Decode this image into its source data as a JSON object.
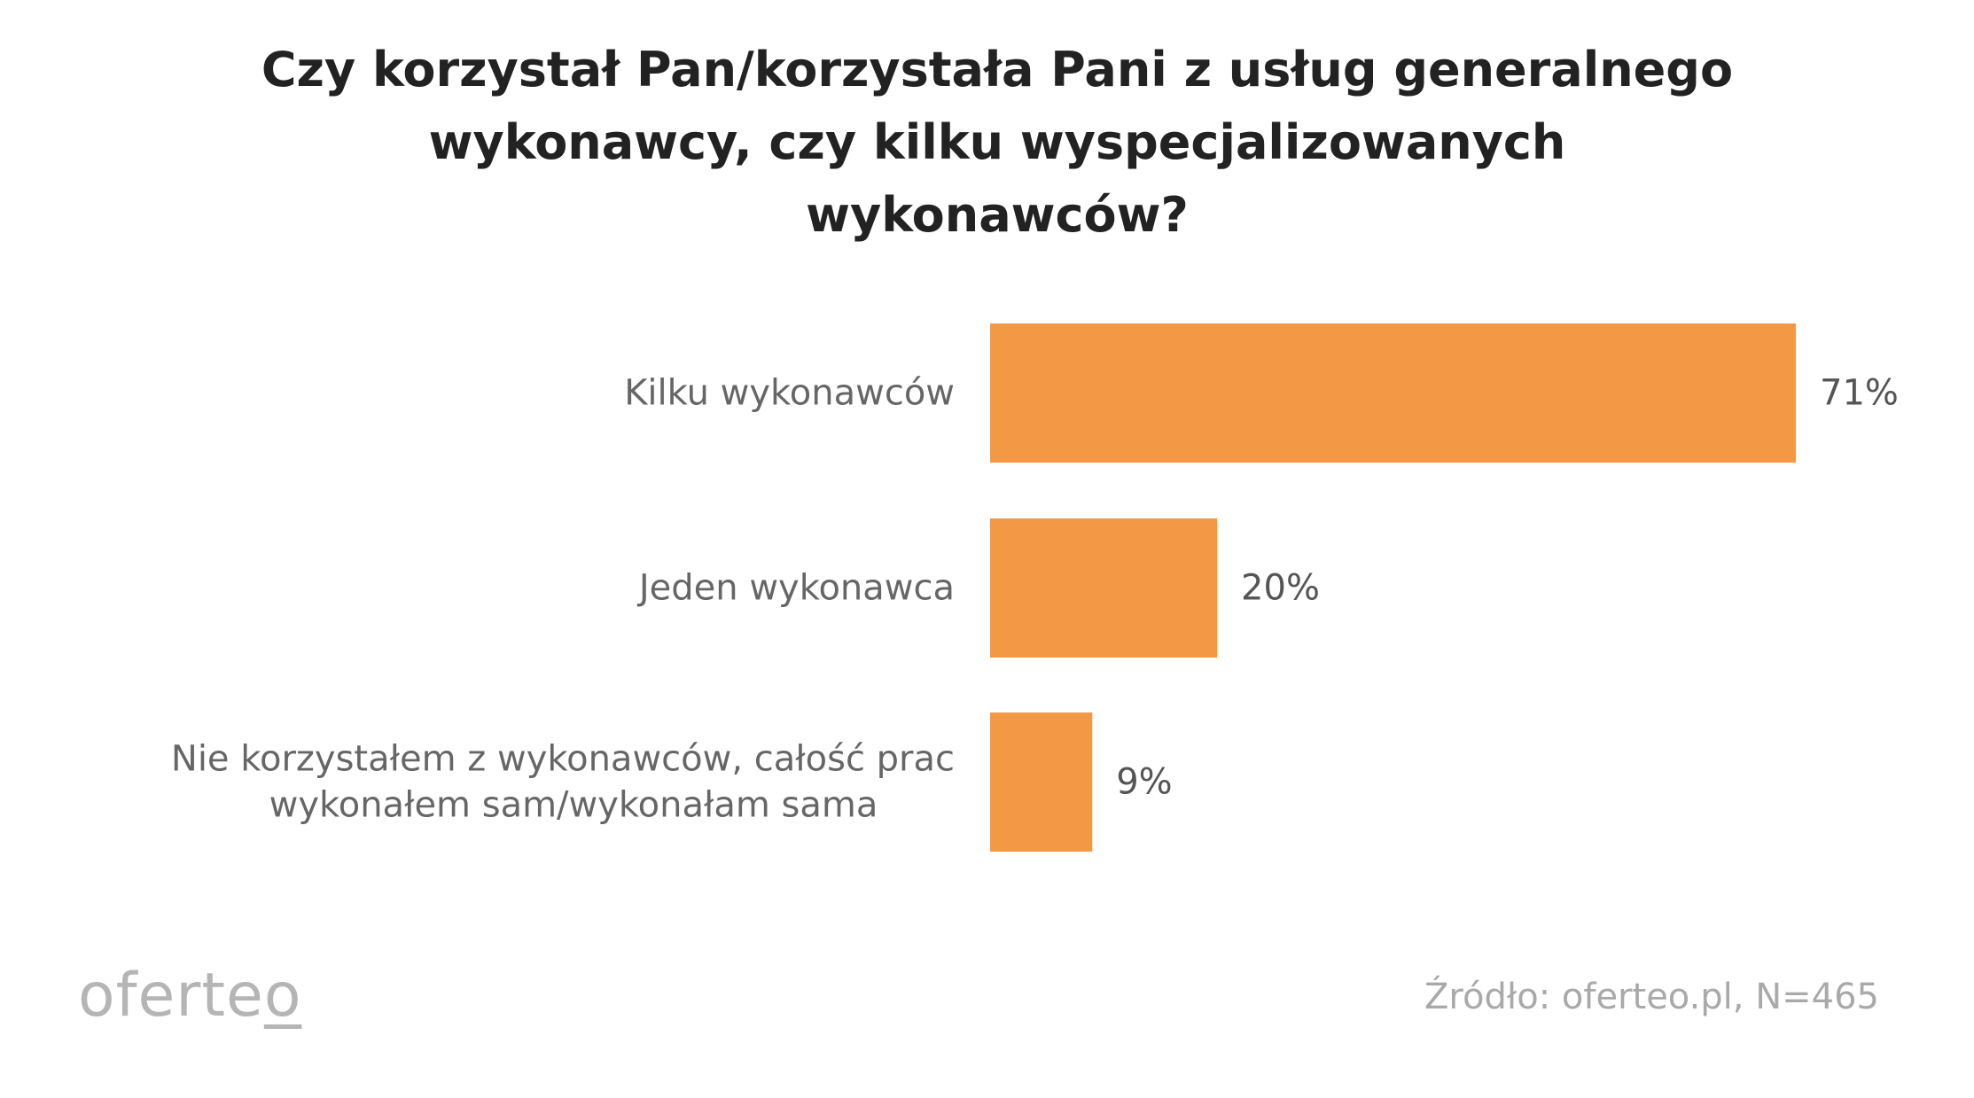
{
  "chart_data": {
    "type": "bar",
    "orientation": "horizontal",
    "title_lines": [
      "Czy korzystał Pan/korzystała Pani z usług generalnego",
      "wykonawcy, czy kilku wyspecjalizowanych",
      "wykonawców?"
    ],
    "categories": [
      [
        "Kilku wykonawców"
      ],
      [
        "Jeden wykonawca"
      ],
      [
        "Nie korzystałem z wykonawców, całość prac",
        "wykonałem sam/wykonałam sama"
      ]
    ],
    "values": [
      71,
      20,
      9
    ],
    "value_labels": [
      "71%",
      "20%",
      "9%"
    ],
    "unit": "%",
    "xlim": [
      0,
      71
    ],
    "grid": false,
    "bar_color": "#F39845"
  },
  "logo": {
    "text_before": "oferte",
    "text_underlined": "o"
  },
  "source": "Źródło: oferteo.pl, N=465",
  "colors": {
    "title": "#222222",
    "category_label": "#666666",
    "value_label": "#555555",
    "muted": "#b5b5b5"
  }
}
